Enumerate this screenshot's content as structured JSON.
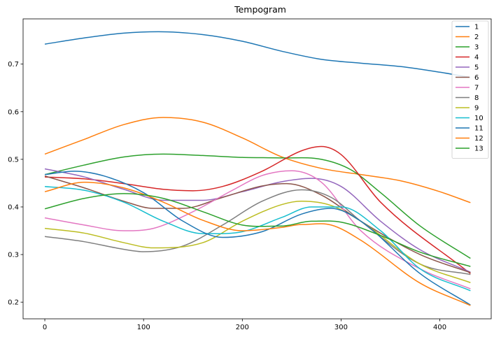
{
  "chart_data": {
    "type": "line",
    "title": "Tempogram",
    "xlabel": "",
    "ylabel": "",
    "xlim": [
      -22,
      452
    ],
    "ylim": [
      0.165,
      0.795
    ],
    "xticks": [
      0,
      100,
      200,
      300,
      400
    ],
    "yticks": [
      0.2,
      0.3,
      0.4,
      0.5,
      0.6,
      0.7
    ],
    "grid": false,
    "legend_position": "top-right",
    "series": [
      {
        "name": "1",
        "color": "#1f77b4",
        "x": [
          0,
          40,
          80,
          115,
          160,
          200,
          240,
          280,
          320,
          360,
          400,
          431
        ],
        "y": [
          0.742,
          0.755,
          0.765,
          0.768,
          0.762,
          0.748,
          0.727,
          0.71,
          0.702,
          0.695,
          0.683,
          0.672
        ]
      },
      {
        "name": "2",
        "color": "#ff7f0e",
        "x": [
          0,
          40,
          80,
          120,
          160,
          200,
          240,
          280,
          320,
          360,
          400,
          431
        ],
        "y": [
          0.511,
          0.542,
          0.573,
          0.588,
          0.578,
          0.545,
          0.505,
          0.481,
          0.468,
          0.455,
          0.432,
          0.409
        ]
      },
      {
        "name": "3",
        "color": "#2ca02c",
        "x": [
          0,
          40,
          80,
          120,
          160,
          200,
          240,
          280,
          310,
          340,
          380,
          431
        ],
        "y": [
          0.468,
          0.488,
          0.505,
          0.511,
          0.508,
          0.504,
          0.503,
          0.5,
          0.478,
          0.43,
          0.36,
          0.292
        ]
      },
      {
        "name": "4",
        "color": "#d62728",
        "x": [
          0,
          40,
          80,
          120,
          150,
          180,
          220,
          260,
          280,
          300,
          340,
          431
        ],
        "y": [
          0.463,
          0.459,
          0.449,
          0.437,
          0.434,
          0.443,
          0.475,
          0.518,
          0.527,
          0.51,
          0.41,
          0.26
        ]
      },
      {
        "name": "5",
        "color": "#9467bd",
        "x": [
          0,
          40,
          80,
          120,
          160,
          200,
          240,
          270,
          300,
          340,
          380,
          431
        ],
        "y": [
          0.48,
          0.463,
          0.437,
          0.414,
          0.414,
          0.432,
          0.453,
          0.46,
          0.443,
          0.37,
          0.31,
          0.263
        ]
      },
      {
        "name": "6",
        "color": "#8c564b",
        "x": [
          0,
          40,
          80,
          110,
          140,
          180,
          220,
          245,
          280,
          320,
          380,
          431
        ],
        "y": [
          0.465,
          0.44,
          0.412,
          0.397,
          0.397,
          0.42,
          0.444,
          0.449,
          0.425,
          0.37,
          0.3,
          0.262
        ]
      },
      {
        "name": "7",
        "color": "#e377c2",
        "x": [
          0,
          40,
          80,
          110,
          150,
          190,
          220,
          250,
          280,
          320,
          380,
          431
        ],
        "y": [
          0.377,
          0.362,
          0.35,
          0.355,
          0.39,
          0.435,
          0.466,
          0.476,
          0.452,
          0.35,
          0.27,
          0.228
        ]
      },
      {
        "name": "8",
        "color": "#7f7f7f",
        "x": [
          0,
          40,
          80,
          100,
          140,
          180,
          220,
          260,
          290,
          320,
          380,
          431
        ],
        "y": [
          0.338,
          0.327,
          0.311,
          0.306,
          0.318,
          0.362,
          0.412,
          0.436,
          0.42,
          0.37,
          0.28,
          0.258
        ]
      },
      {
        "name": "9",
        "color": "#bcbd22",
        "x": [
          0,
          40,
          80,
          110,
          160,
          200,
          240,
          260,
          290,
          320,
          380,
          431
        ],
        "y": [
          0.355,
          0.345,
          0.325,
          0.314,
          0.325,
          0.37,
          0.405,
          0.412,
          0.403,
          0.37,
          0.28,
          0.241
        ]
      },
      {
        "name": "10",
        "color": "#17becf",
        "x": [
          0,
          40,
          80,
          120,
          160,
          200,
          240,
          270,
          300,
          340,
          380,
          431
        ],
        "y": [
          0.443,
          0.435,
          0.41,
          0.37,
          0.344,
          0.348,
          0.378,
          0.4,
          0.4,
          0.35,
          0.27,
          0.224
        ]
      },
      {
        "name": "11",
        "color": "#1f77b4",
        "x": [
          0,
          30,
          60,
          100,
          140,
          180,
          220,
          260,
          290,
          320,
          380,
          431
        ],
        "y": [
          0.468,
          0.475,
          0.465,
          0.43,
          0.37,
          0.336,
          0.348,
          0.385,
          0.397,
          0.37,
          0.26,
          0.194
        ]
      },
      {
        "name": "12",
        "color": "#ff7f0e",
        "x": [
          0,
          40,
          80,
          120,
          160,
          200,
          240,
          260,
          290,
          320,
          380,
          431
        ],
        "y": [
          0.432,
          0.452,
          0.44,
          0.41,
          0.372,
          0.35,
          0.357,
          0.363,
          0.362,
          0.33,
          0.24,
          0.193
        ]
      },
      {
        "name": "13",
        "color": "#2ca02c",
        "x": [
          0,
          40,
          80,
          120,
          160,
          200,
          240,
          270,
          300,
          340,
          380,
          431
        ],
        "y": [
          0.396,
          0.418,
          0.428,
          0.418,
          0.39,
          0.362,
          0.36,
          0.37,
          0.368,
          0.34,
          0.305,
          0.275
        ]
      }
    ]
  }
}
